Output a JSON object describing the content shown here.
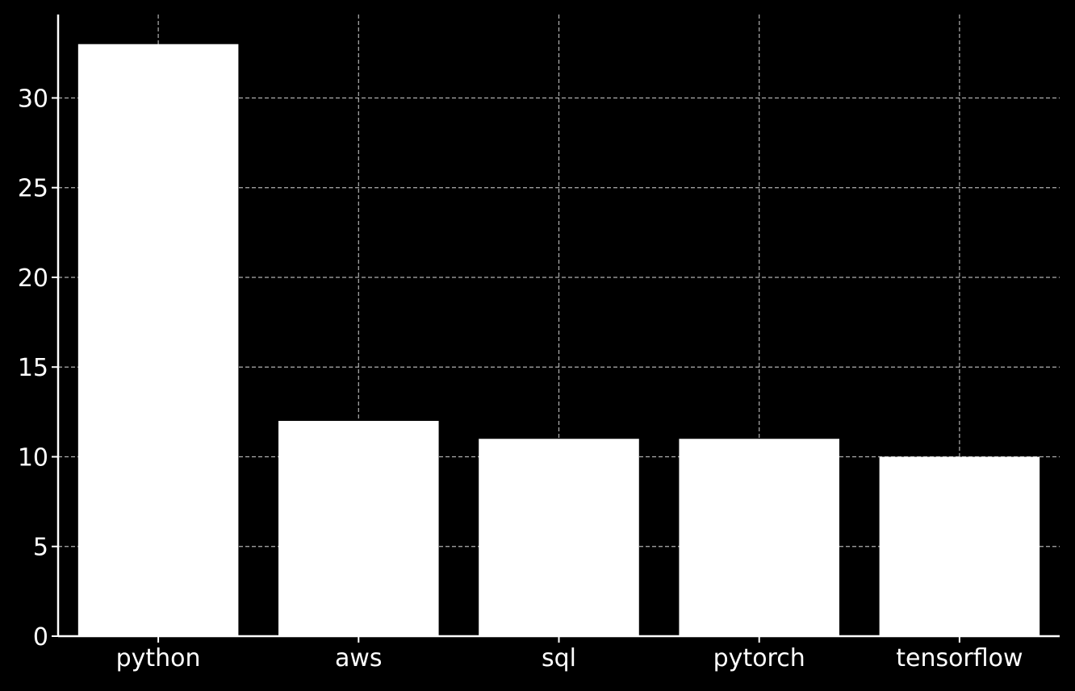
{
  "chart_data": {
    "type": "bar",
    "title": "",
    "xlabel": "",
    "ylabel": "",
    "categories": [
      "python",
      "aws",
      "sql",
      "pytorch",
      "tensorflow"
    ],
    "values": [
      33,
      12,
      11,
      11,
      10
    ],
    "ylim": [
      0,
      34.65
    ],
    "yticks": [
      0,
      5,
      10,
      15,
      20,
      25,
      30
    ],
    "grid": true,
    "grid_style": "dashed",
    "legend": "none",
    "colors": {
      "background": "#000000",
      "bar": "#ffffff",
      "axis": "#ffffff",
      "grid": "#b0b0b0",
      "text": "#ffffff"
    }
  }
}
